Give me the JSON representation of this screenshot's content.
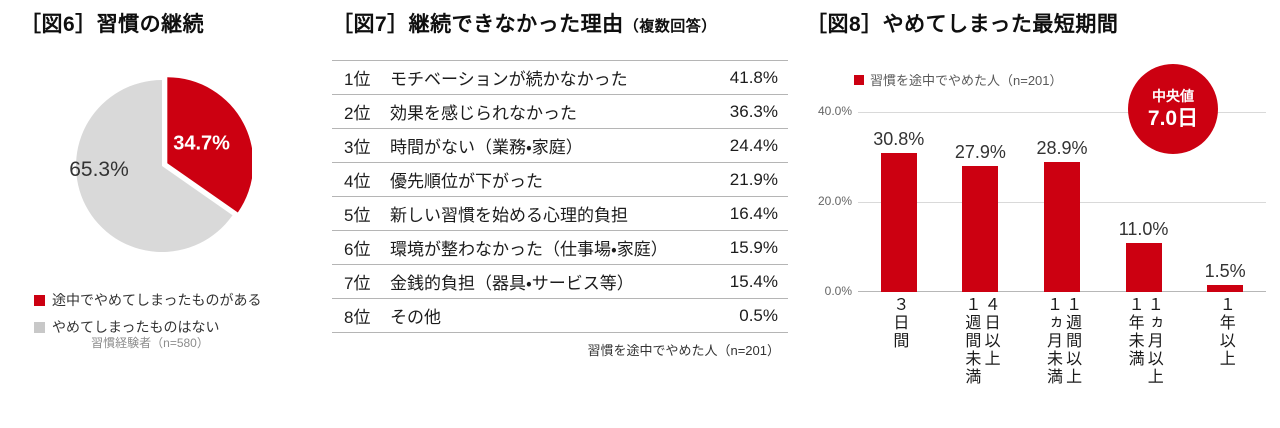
{
  "colors": {
    "accent_red": "#cc0011",
    "pie_gray": "#d9d9d9",
    "grid": "#d9d9d9"
  },
  "headers": {
    "fig6": "［図6］習慣の継続",
    "fig7": "［図7］継続できなかった理由",
    "fig7_suffix": "（複数回答）",
    "fig8": "［図8］やめてしまった最短期間"
  },
  "fig8": {
    "median_label": "中央値",
    "median_value": "7.0日"
  },
  "chart_data": [
    {
      "type": "pie",
      "title": "［図6］習慣の継続",
      "labels": [
        "途中でやめてしまったものがある",
        "やめてしまったものはない"
      ],
      "values": [
        34.7,
        65.3
      ],
      "value_labels": [
        "34.7%",
        "65.3%"
      ],
      "colors": [
        "#cc0011",
        "#d9d9d9"
      ],
      "explode": [
        1,
        0
      ],
      "note": "習慣経験者（n=580）"
    },
    {
      "type": "table",
      "title": "［図7］継続できなかった理由（複数回答）",
      "rows": [
        {
          "rank": "1位",
          "label": "モチベーションが続かなかった",
          "value": "41.8%"
        },
        {
          "rank": "2位",
          "label": "効果を感じられなかった",
          "value": "36.3%"
        },
        {
          "rank": "3位",
          "label": "時間がない（業務・家庭）",
          "value": "24.4%"
        },
        {
          "rank": "4位",
          "label": "優先順位が下がった",
          "value": "21.9%"
        },
        {
          "rank": "5位",
          "label": "新しい習慣を始める心理的負担",
          "value": "16.4%"
        },
        {
          "rank": "6位",
          "label": "環境が整わなかった（仕事場・家庭）",
          "value": "15.9%"
        },
        {
          "rank": "7位",
          "label": "金銭的負担（器具・サービス等）",
          "value": "15.4%"
        },
        {
          "rank": "8位",
          "label": "その他",
          "value": "0.5%"
        }
      ],
      "values": [
        41.8,
        36.3,
        24.4,
        21.9,
        16.4,
        15.9,
        15.4,
        0.5
      ],
      "note": "習慣を途中でやめた人（n=201）"
    },
    {
      "type": "bar",
      "title": "［図8］やめてしまった最短期間",
      "legend": "習慣を途中でやめた人（n=201）",
      "legend_position": "top-left",
      "categories": [
        "３日間",
        "４日以上１週間未満",
        "１週間以上１ヵ月未満",
        "１ヵ月以上１年未満",
        "１年以上"
      ],
      "categories_display": [
        "３日間",
        "４日以上\n１週間未満",
        "１週間以上\n１ヵ月未満",
        "１ヵ月以上\n１年未満",
        "１年以上"
      ],
      "values": [
        30.8,
        27.9,
        28.9,
        11.0,
        1.5
      ],
      "value_labels": [
        "30.8%",
        "27.9%",
        "28.9%",
        "11.0%",
        "1.5%"
      ],
      "ylim": [
        0,
        40
      ],
      "y_ticks": [
        "0.0%",
        "20.0%",
        "40.0%"
      ],
      "grid": true,
      "bar_color": "#cc0011",
      "median": "中央値 7.0日"
    }
  ]
}
